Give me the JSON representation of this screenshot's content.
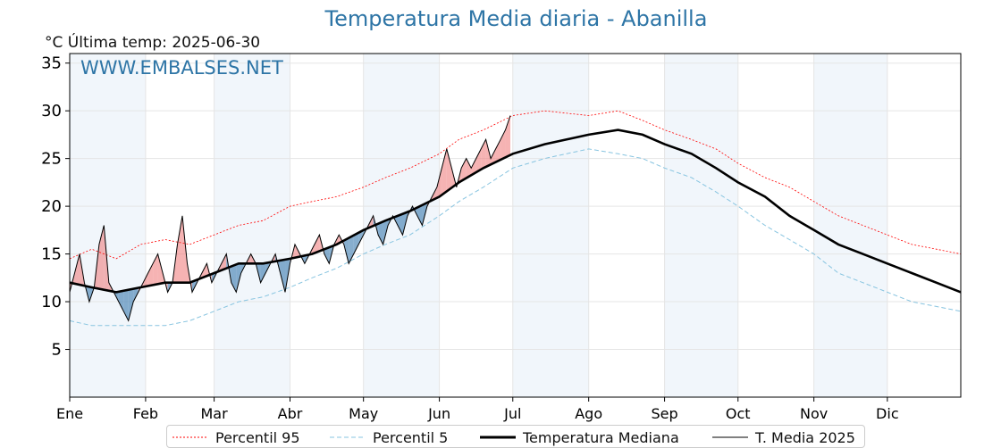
{
  "title": "Temperatura Media diaria - Abanilla",
  "subtitle": "°C   Última temp: 2025-06-30",
  "watermark": "WWW.EMBALSES.NET",
  "colors": {
    "p95": "#ff0000",
    "p5": "#87c4e0",
    "median": "#000000",
    "current": "#000000",
    "above_fill": "#f08080",
    "below_fill": "#4682b4",
    "month_band": "#e8f0f8",
    "grid": "#e5e5e5",
    "title": "#2e75a6"
  },
  "chart_data": {
    "type": "line",
    "title": "Temperatura Media diaria - Abanilla",
    "ylabel": "°C",
    "ylim": [
      0,
      36
    ],
    "yticks": [
      5,
      10,
      15,
      20,
      25,
      30,
      35
    ],
    "xlim": [
      1,
      365
    ],
    "grid": true,
    "legend_position": "bottom",
    "months": [
      {
        "label": "Ene",
        "start_day": 1
      },
      {
        "label": "Feb",
        "start_day": 32
      },
      {
        "label": "Mar",
        "start_day": 60
      },
      {
        "label": "Abr",
        "start_day": 91
      },
      {
        "label": "May",
        "start_day": 121
      },
      {
        "label": "Jun",
        "start_day": 152
      },
      {
        "label": "Jul",
        "start_day": 182
      },
      {
        "label": "Ago",
        "start_day": 213
      },
      {
        "label": "Sep",
        "start_day": 244
      },
      {
        "label": "Oct",
        "start_day": 274
      },
      {
        "label": "Nov",
        "start_day": 305
      },
      {
        "label": "Dic",
        "start_day": 335
      }
    ],
    "series": [
      {
        "name": "Percentil 95",
        "style": "dotted",
        "points": [
          [
            1,
            14.5
          ],
          [
            10,
            15.5
          ],
          [
            20,
            14.5
          ],
          [
            30,
            16
          ],
          [
            40,
            16.5
          ],
          [
            50,
            16
          ],
          [
            60,
            17
          ],
          [
            70,
            18
          ],
          [
            80,
            18.5
          ],
          [
            91,
            20
          ],
          [
            100,
            20.5
          ],
          [
            110,
            21
          ],
          [
            121,
            22
          ],
          [
            130,
            23
          ],
          [
            140,
            24
          ],
          [
            152,
            25.5
          ],
          [
            160,
            27
          ],
          [
            170,
            28
          ],
          [
            182,
            29.5
          ],
          [
            195,
            30
          ],
          [
            213,
            29.5
          ],
          [
            225,
            30
          ],
          [
            235,
            29
          ],
          [
            244,
            28
          ],
          [
            255,
            27
          ],
          [
            265,
            26
          ],
          [
            274,
            24.5
          ],
          [
            285,
            23
          ],
          [
            295,
            22
          ],
          [
            305,
            20.5
          ],
          [
            315,
            19
          ],
          [
            325,
            18
          ],
          [
            335,
            17
          ],
          [
            345,
            16
          ],
          [
            355,
            15.5
          ],
          [
            365,
            15
          ]
        ]
      },
      {
        "name": "Percentil 5",
        "style": "dashed",
        "points": [
          [
            1,
            8
          ],
          [
            10,
            7.5
          ],
          [
            20,
            7.5
          ],
          [
            30,
            7.5
          ],
          [
            40,
            7.5
          ],
          [
            50,
            8
          ],
          [
            60,
            9
          ],
          [
            70,
            10
          ],
          [
            80,
            10.5
          ],
          [
            91,
            11.5
          ],
          [
            100,
            12.5
          ],
          [
            110,
            13.5
          ],
          [
            121,
            15
          ],
          [
            130,
            16
          ],
          [
            140,
            17
          ],
          [
            152,
            19
          ],
          [
            160,
            20.5
          ],
          [
            170,
            22
          ],
          [
            182,
            24
          ],
          [
            195,
            25
          ],
          [
            213,
            26
          ],
          [
            225,
            25.5
          ],
          [
            235,
            25
          ],
          [
            244,
            24
          ],
          [
            255,
            23
          ],
          [
            265,
            21.5
          ],
          [
            274,
            20
          ],
          [
            285,
            18
          ],
          [
            295,
            16.5
          ],
          [
            305,
            15
          ],
          [
            315,
            13
          ],
          [
            325,
            12
          ],
          [
            335,
            11
          ],
          [
            345,
            10
          ],
          [
            355,
            9.5
          ],
          [
            365,
            9
          ]
        ]
      },
      {
        "name": "Temperatura Mediana",
        "style": "solid-thick",
        "points": [
          [
            1,
            12
          ],
          [
            10,
            11.5
          ],
          [
            20,
            11
          ],
          [
            30,
            11.5
          ],
          [
            40,
            12
          ],
          [
            50,
            12
          ],
          [
            60,
            13
          ],
          [
            70,
            14
          ],
          [
            80,
            14
          ],
          [
            91,
            14.5
          ],
          [
            100,
            15
          ],
          [
            110,
            16
          ],
          [
            121,
            17.5
          ],
          [
            130,
            18.5
          ],
          [
            140,
            19.5
          ],
          [
            152,
            21
          ],
          [
            160,
            22.5
          ],
          [
            170,
            24
          ],
          [
            182,
            25.5
          ],
          [
            195,
            26.5
          ],
          [
            213,
            27.5
          ],
          [
            225,
            28
          ],
          [
            235,
            27.5
          ],
          [
            244,
            26.5
          ],
          [
            255,
            25.5
          ],
          [
            265,
            24
          ],
          [
            274,
            22.5
          ],
          [
            285,
            21
          ],
          [
            295,
            19
          ],
          [
            305,
            17.5
          ],
          [
            315,
            16
          ],
          [
            325,
            15
          ],
          [
            335,
            14
          ],
          [
            345,
            13
          ],
          [
            355,
            12
          ],
          [
            365,
            11
          ]
        ]
      },
      {
        "name": "T. Media 2025",
        "style": "solid-thin",
        "points": [
          [
            1,
            11
          ],
          [
            3,
            13
          ],
          [
            5,
            15
          ],
          [
            7,
            12
          ],
          [
            9,
            10
          ],
          [
            11,
            11.5
          ],
          [
            13,
            16
          ],
          [
            15,
            18
          ],
          [
            17,
            12
          ],
          [
            19,
            11
          ],
          [
            21,
            10
          ],
          [
            23,
            9
          ],
          [
            25,
            8
          ],
          [
            27,
            10
          ],
          [
            29,
            11
          ],
          [
            31,
            12
          ],
          [
            33,
            13
          ],
          [
            35,
            14
          ],
          [
            37,
            15
          ],
          [
            39,
            13
          ],
          [
            41,
            11
          ],
          [
            43,
            12
          ],
          [
            45,
            16
          ],
          [
            47,
            19
          ],
          [
            49,
            14
          ],
          [
            51,
            11
          ],
          [
            53,
            12
          ],
          [
            55,
            13
          ],
          [
            57,
            14
          ],
          [
            59,
            12
          ],
          [
            61,
            13
          ],
          [
            63,
            14
          ],
          [
            65,
            15
          ],
          [
            67,
            12
          ],
          [
            69,
            11
          ],
          [
            71,
            13
          ],
          [
            73,
            14
          ],
          [
            75,
            15
          ],
          [
            77,
            14
          ],
          [
            79,
            12
          ],
          [
            81,
            13
          ],
          [
            83,
            14
          ],
          [
            85,
            15
          ],
          [
            87,
            13
          ],
          [
            89,
            11
          ],
          [
            91,
            14
          ],
          [
            93,
            16
          ],
          [
            95,
            15
          ],
          [
            97,
            14
          ],
          [
            99,
            15
          ],
          [
            101,
            16
          ],
          [
            103,
            17
          ],
          [
            105,
            15
          ],
          [
            107,
            14
          ],
          [
            109,
            16
          ],
          [
            111,
            17
          ],
          [
            113,
            16
          ],
          [
            115,
            14
          ],
          [
            117,
            15
          ],
          [
            119,
            16
          ],
          [
            121,
            17
          ],
          [
            123,
            18
          ],
          [
            125,
            19
          ],
          [
            127,
            17
          ],
          [
            129,
            16
          ],
          [
            131,
            18
          ],
          [
            133,
            19
          ],
          [
            135,
            18
          ],
          [
            137,
            17
          ],
          [
            139,
            19
          ],
          [
            141,
            20
          ],
          [
            143,
            19
          ],
          [
            145,
            18
          ],
          [
            147,
            20
          ],
          [
            149,
            21
          ],
          [
            151,
            22
          ],
          [
            153,
            24
          ],
          [
            155,
            26
          ],
          [
            157,
            24
          ],
          [
            159,
            22
          ],
          [
            161,
            24
          ],
          [
            163,
            25
          ],
          [
            165,
            24
          ],
          [
            167,
            25
          ],
          [
            169,
            26
          ],
          [
            171,
            27
          ],
          [
            173,
            25
          ],
          [
            175,
            26
          ],
          [
            177,
            27
          ],
          [
            179,
            28
          ],
          [
            181,
            29.5
          ]
        ]
      }
    ],
    "legend": [
      "Percentil 95",
      "Percentil 5",
      "Temperatura Mediana",
      "T. Media 2025"
    ]
  }
}
